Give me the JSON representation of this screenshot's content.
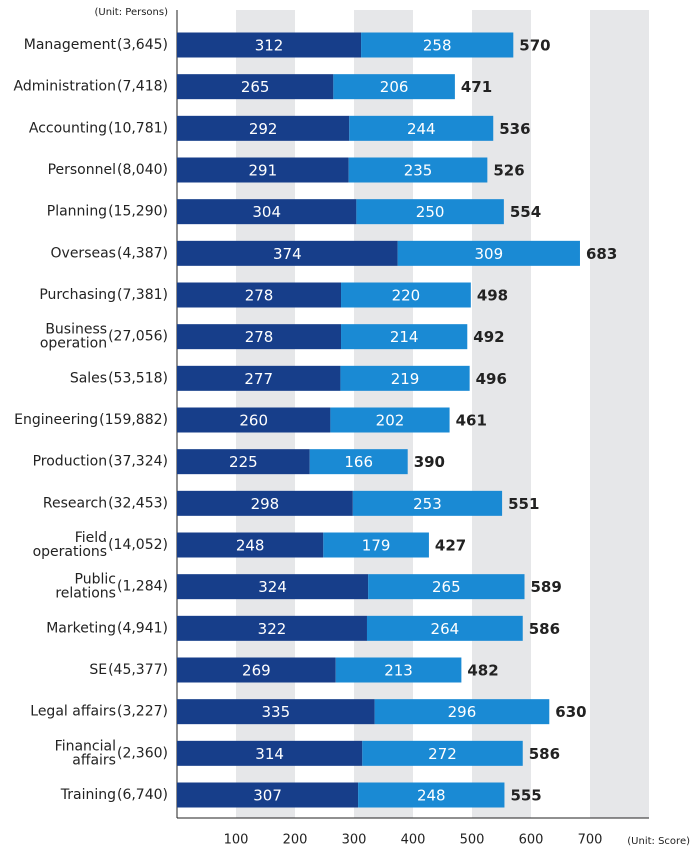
{
  "chart_data": {
    "type": "stacked-bar-horizontal",
    "unit_left": "(Unit: Persons)",
    "unit_right": "(Unit: Score)",
    "categories": [
      "Management",
      "Administration",
      "Accounting",
      "Personnel",
      "Planning",
      "Overseas",
      "Purchasing",
      "Business\noperation",
      "Sales",
      "Engineering",
      "Production",
      "Research",
      "Field\noperations",
      "Public\nrelations",
      "Marketing",
      "SE",
      "Legal affairs",
      "Financial\naffairs",
      "Training"
    ],
    "persons": [
      "(3,645)",
      "(7,418)",
      "(10,781)",
      "(8,040)",
      "(15,290)",
      "(4,387)",
      "(7,381)",
      "(27,056)",
      "(53,518)",
      "(159,882)",
      "(37,324)",
      "(32,453)",
      "(14,052)",
      "(1,284)",
      "(4,941)",
      "(45,377)",
      "(3,227)",
      "(2,360)",
      "(6,740)"
    ],
    "series": [
      {
        "color": "#173e8a",
        "values": [
          312,
          265,
          292,
          291,
          304,
          374,
          278,
          278,
          277,
          260,
          225,
          298,
          248,
          324,
          322,
          269,
          335,
          314,
          307
        ]
      },
      {
        "color": "#1a8ad4",
        "values": [
          258,
          206,
          244,
          235,
          250,
          309,
          220,
          214,
          219,
          202,
          166,
          253,
          179,
          265,
          264,
          213,
          296,
          272,
          248
        ]
      }
    ],
    "totals": [
      570,
      471,
      536,
      526,
      554,
      683,
      498,
      492,
      496,
      461,
      390,
      551,
      427,
      589,
      586,
      482,
      630,
      586,
      555
    ],
    "xlim": [
      0,
      800
    ],
    "xticks": [
      100,
      200,
      300,
      400,
      500,
      600,
      700
    ],
    "bands": true
  }
}
